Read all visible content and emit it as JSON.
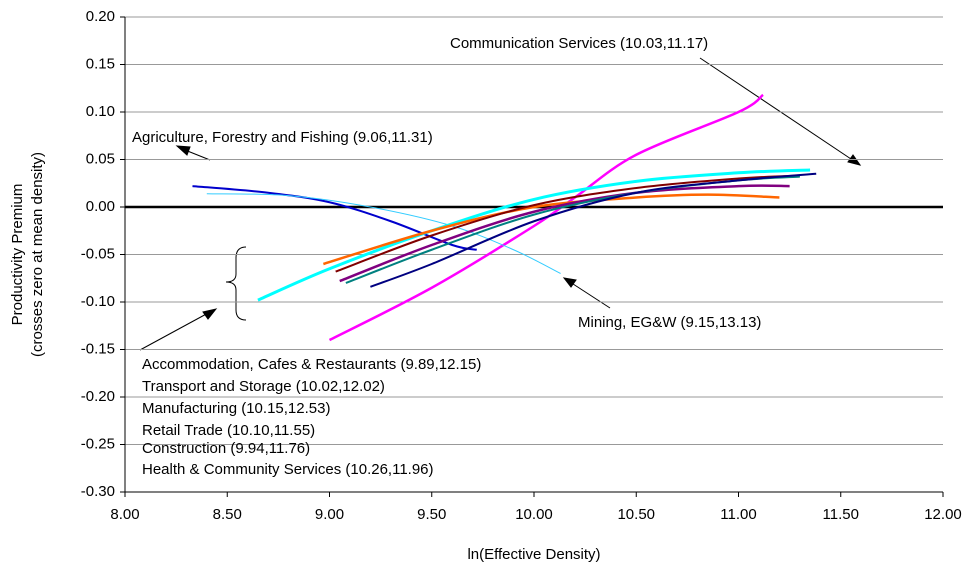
{
  "chart_data": {
    "type": "line",
    "xlabel": "ln(Effective Density)",
    "ylabel": [
      "Productivity Premium",
      "(crosses zero at mean density)"
    ],
    "xlim": [
      8,
      12
    ],
    "ylim": [
      -0.3,
      0.2
    ],
    "xticks": [
      {
        "value": 8,
        "label": "8.00"
      },
      {
        "value": 8.5,
        "label": "8.50"
      },
      {
        "value": 9,
        "label": "9.00"
      },
      {
        "value": 9.5,
        "label": "9.50"
      },
      {
        "value": 10,
        "label": "10.00"
      },
      {
        "value": 10.5,
        "label": "10.50"
      },
      {
        "value": 11,
        "label": "11.00"
      },
      {
        "value": 11.5,
        "label": "11.50"
      },
      {
        "value": 12,
        "label": "12.00"
      }
    ],
    "yticks": [
      {
        "value": 0.2,
        "label": "0.20"
      },
      {
        "value": 0.15,
        "label": "0.15"
      },
      {
        "value": 0.1,
        "label": "0.10"
      },
      {
        "value": 0.05,
        "label": "0.05"
      },
      {
        "value": 0,
        "label": "0.00"
      },
      {
        "value": -0.05,
        "label": "-0.05"
      },
      {
        "value": -0.1,
        "label": "-0.10"
      },
      {
        "value": -0.15,
        "label": "-0.15"
      },
      {
        "value": -0.2,
        "label": "-0.20"
      },
      {
        "value": -0.25,
        "label": "-0.25"
      },
      {
        "value": -0.3,
        "label": "-0.30"
      }
    ],
    "grid": true,
    "series": [
      {
        "name": "Communication Services (10.03,11.17)",
        "color": "#ff00ff",
        "x": [
          9.0,
          9.5,
          10.0,
          10.2,
          10.5,
          11.0,
          11.12
        ],
        "values": [
          -0.14,
          -0.085,
          -0.02,
          0.01,
          0.055,
          0.1,
          0.118
        ]
      },
      {
        "name": "Agriculture, Forestry and Fishing (9.06,11.31)",
        "color": "#0000cc",
        "x": [
          8.33,
          8.7,
          9.0,
          9.3,
          9.6,
          9.72
        ],
        "values": [
          0.022,
          0.015,
          0.005,
          -0.015,
          -0.04,
          -0.045
        ]
      },
      {
        "name": "Mining, EG&W (9.15,13.13)",
        "color": "#33ccff",
        "x": [
          8.4,
          8.8,
          9.2,
          9.6,
          9.9,
          10.13
        ],
        "values": [
          0.014,
          0.012,
          0.0,
          -0.02,
          -0.045,
          -0.07
        ]
      },
      {
        "name": "Accommodation, Cafes & Restaurants (9.89,12.15)",
        "color": "#00ffff",
        "x": [
          8.65,
          9.0,
          9.5,
          10.0,
          10.5,
          11.0,
          11.35
        ],
        "values": [
          -0.098,
          -0.065,
          -0.025,
          0.008,
          0.027,
          0.036,
          0.039
        ]
      },
      {
        "name": "Transport and Storage (10.02,12.02)",
        "color": "#ff6600",
        "x": [
          8.97,
          9.5,
          10.0,
          10.5,
          10.85,
          11.2
        ],
        "values": [
          -0.06,
          -0.025,
          0.0,
          0.01,
          0.013,
          0.01
        ]
      },
      {
        "name": "Manufacturing (10.15,12.53)",
        "color": "#800000",
        "x": [
          9.03,
          9.5,
          10.0,
          10.5,
          11.0,
          11.3
        ],
        "values": [
          -0.068,
          -0.03,
          0.002,
          0.02,
          0.03,
          0.033
        ]
      },
      {
        "name": "Retail Trade (10.10,11.55)",
        "color": "#800080",
        "x": [
          9.05,
          9.5,
          10.0,
          10.5,
          11.0,
          11.25
        ],
        "values": [
          -0.078,
          -0.04,
          -0.005,
          0.015,
          0.022,
          0.022
        ]
      },
      {
        "name": "Construction (9.94,11.76)",
        "color": "#008080",
        "x": [
          9.08,
          9.5,
          10.0,
          10.5,
          11.0,
          11.3
        ],
        "values": [
          -0.08,
          -0.045,
          -0.008,
          0.015,
          0.028,
          0.032
        ]
      },
      {
        "name": "Health & Community Services (10.26,11.96)",
        "color": "#000080",
        "x": [
          9.2,
          9.5,
          10.0,
          10.5,
          11.0,
          11.38
        ],
        "values": [
          -0.084,
          -0.06,
          -0.015,
          0.015,
          0.028,
          0.035
        ]
      }
    ]
  }
}
